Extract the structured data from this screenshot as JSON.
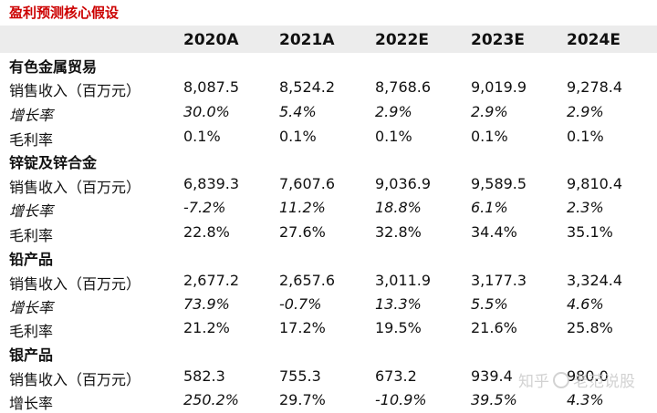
{
  "title": "盈利预测核心假设",
  "header": [
    "",
    "2020A",
    "2021A",
    "2022E",
    "2023E",
    "2024E"
  ],
  "sections": [
    {
      "name": "有色金属贸易",
      "rows": [
        {
          "label": "销售收入（百万元）",
          "values": [
            "8,087.5",
            "8,524.2",
            "8,768.6",
            "9,019.9",
            "9,278.4"
          ]
        },
        {
          "label": "增长率",
          "values": [
            "30.0%",
            "5.4%",
            "2.9%",
            "2.9%",
            "2.9%"
          ]
        },
        {
          "label": "毛利率",
          "values": [
            "0.1%",
            "0.1%",
            "0.1%",
            "0.1%",
            "0.1%"
          ]
        }
      ]
    },
    {
      "name": "锌锭及锌合金",
      "rows": [
        {
          "label": "销售收入（百万元）",
          "values": [
            "6,839.3",
            "7,607.6",
            "9,036.9",
            "9,589.5",
            "9,810.4"
          ]
        },
        {
          "label": "增长率",
          "values": [
            "-7.2%",
            "11.2%",
            "18.8%",
            "6.1%",
            "2.3%"
          ]
        },
        {
          "label": "毛利率",
          "values": [
            "22.8%",
            "27.6%",
            "32.8%",
            "34.4%",
            "35.1%"
          ]
        }
      ]
    },
    {
      "name": "铅产品",
      "rows": [
        {
          "label": "销售收入（百万元）",
          "values": [
            "2,677.2",
            "2,657.6",
            "3,011.9",
            "3,177.3",
            "3,324.4"
          ]
        },
        {
          "label": "增长率",
          "values": [
            "73.9%",
            "-0.7%",
            "13.3%",
            "5.5%",
            "4.6%"
          ]
        },
        {
          "label": "毛利率",
          "values": [
            "21.2%",
            "17.2%",
            "19.5%",
            "21.6%",
            "25.8%"
          ]
        }
      ]
    },
    {
      "name": "银产品",
      "rows": [
        {
          "label": "销售收入（百万元）",
          "values": [
            "582.3",
            "755.3",
            "673.2",
            "939.4",
            "980.0"
          ]
        },
        {
          "label": "增长率",
          "values": [
            "250.2%",
            "29.7%",
            "-10.9%",
            "39.5%",
            "4.3%"
          ]
        }
      ]
    }
  ],
  "watermark": {
    "left": "知乎",
    "right": "老范说股"
  }
}
